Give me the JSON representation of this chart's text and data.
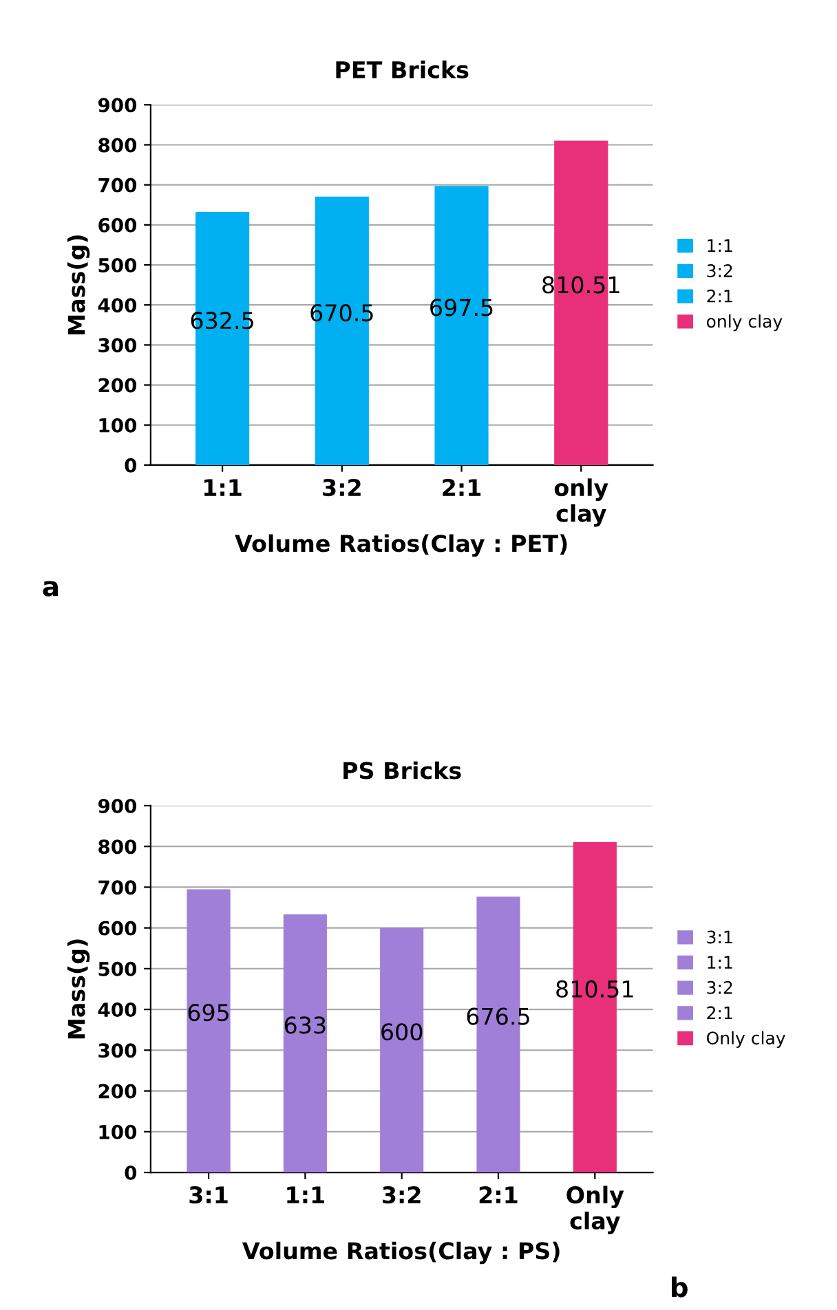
{
  "chart_data": [
    {
      "type": "bar",
      "title": "PET Bricks",
      "xlabel": "Volume Ratios(Clay : PET)",
      "ylabel": "Mass(g)",
      "categories": [
        "1:1",
        "3:2",
        "2:1",
        "only\nclay"
      ],
      "series": [
        {
          "name": "1:1",
          "color": "#00b0f0",
          "values": [
            632.5,
            null,
            null,
            null
          ]
        },
        {
          "name": "3:2",
          "color": "#00b0f0",
          "values": [
            null,
            670.5,
            null,
            null
          ]
        },
        {
          "name": "2:1",
          "color": "#00b0f0",
          "values": [
            null,
            null,
            697.5,
            null
          ]
        },
        {
          "name": "only clay",
          "color": "#e8307a",
          "values": [
            null,
            null,
            null,
            810.51
          ]
        }
      ],
      "ylim": [
        0,
        900
      ],
      "yticks": [
        0,
        100,
        200,
        300,
        400,
        500,
        600,
        700,
        800,
        900
      ],
      "grid": "y",
      "legend": "right",
      "data_labels": true,
      "annotations": [
        "a"
      ]
    },
    {
      "type": "bar",
      "title": "PS Bricks",
      "xlabel": "Volume Ratios(Clay : PS)",
      "ylabel": "Mass(g)",
      "categories": [
        "3:1",
        "1:1",
        "3:2",
        "2:1",
        "Only\nclay"
      ],
      "series": [
        {
          "name": "3:1",
          "color": "#a07fd8",
          "values": [
            695,
            null,
            null,
            null,
            null
          ]
        },
        {
          "name": "1:1",
          "color": "#a07fd8",
          "values": [
            null,
            633,
            null,
            null,
            null
          ]
        },
        {
          "name": "3:2",
          "color": "#a07fd8",
          "values": [
            null,
            null,
            600,
            null,
            null
          ]
        },
        {
          "name": "2:1",
          "color": "#a07fd8",
          "values": [
            null,
            null,
            null,
            676.5,
            null
          ]
        },
        {
          "name": "Only clay",
          "color": "#e8307a",
          "values": [
            null,
            null,
            null,
            null,
            810.51
          ]
        }
      ],
      "ylim": [
        0,
        900
      ],
      "yticks": [
        0,
        100,
        200,
        300,
        400,
        500,
        600,
        700,
        800,
        900
      ],
      "grid": "y",
      "legend": "right",
      "data_labels": true,
      "annotations": [
        "b"
      ]
    }
  ]
}
